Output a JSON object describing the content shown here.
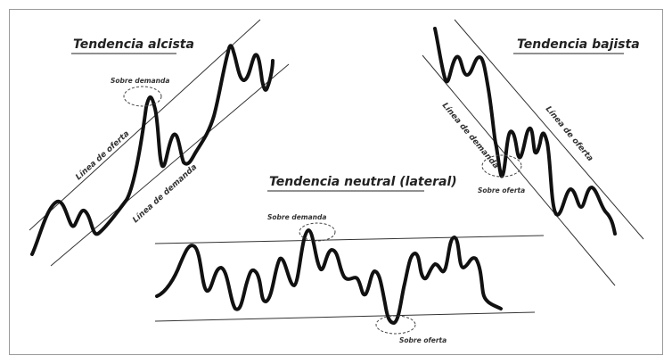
{
  "diagram": {
    "uptrend": {
      "title": "Tendencia alcista",
      "supply_line_label": "Línea de oferta",
      "demand_line_label": "Línea de demanda",
      "overbought_label": "Sobre demanda"
    },
    "downtrend": {
      "title": "Tendencia bajista",
      "demand_line_label": "Línea de demanda",
      "supply_line_label": "Línea de oferta",
      "oversold_label": "Sobre oferta"
    },
    "sideways": {
      "title": "Tendencia neutral (lateral)",
      "overbought_label": "Sobre demanda",
      "oversold_label": "Sobre oferta"
    }
  }
}
